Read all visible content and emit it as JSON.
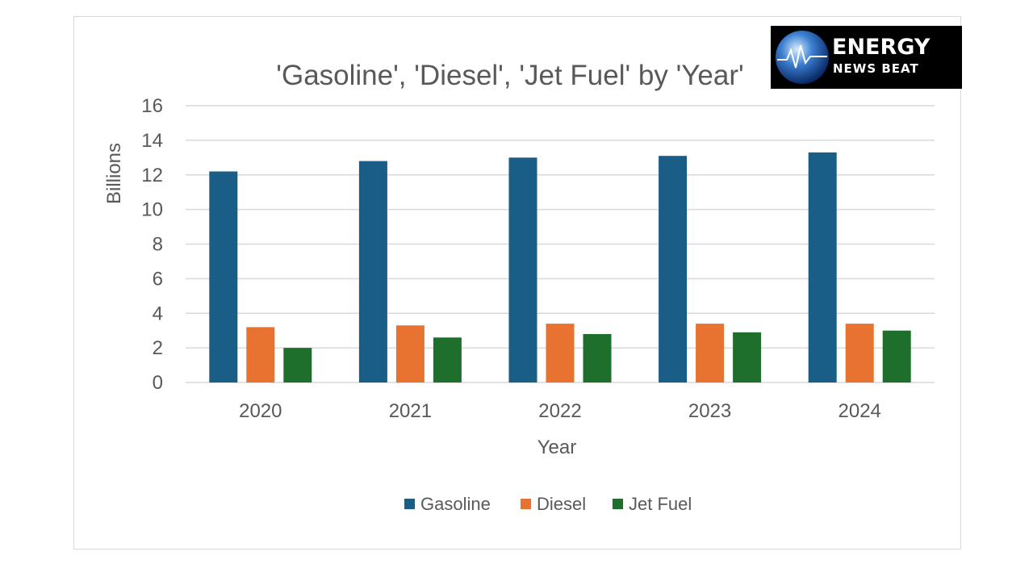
{
  "chart_data": {
    "type": "bar",
    "title": "'Gasoline', 'Diesel', 'Jet Fuel' by 'Year'",
    "xlabel": "Year",
    "ylabel": "Billions",
    "categories": [
      "2020",
      "2021",
      "2022",
      "2023",
      "2024"
    ],
    "ylim": [
      0,
      16
    ],
    "yticks": [
      0,
      2,
      4,
      6,
      8,
      10,
      12,
      14,
      16
    ],
    "grid": true,
    "legend_position": "bottom",
    "series": [
      {
        "name": "Gasoline",
        "color": "#1a5d87",
        "values": [
          12.2,
          12.8,
          13.0,
          13.1,
          13.3
        ]
      },
      {
        "name": "Diesel",
        "color": "#e8722f",
        "values": [
          3.2,
          3.3,
          3.4,
          3.4,
          3.4
        ]
      },
      {
        "name": "Jet Fuel",
        "color": "#1e6f2c",
        "values": [
          2.0,
          2.6,
          2.8,
          2.9,
          3.0
        ]
      }
    ]
  },
  "logo": {
    "line1": "ENERGY",
    "line2": "NEWS BEAT"
  }
}
